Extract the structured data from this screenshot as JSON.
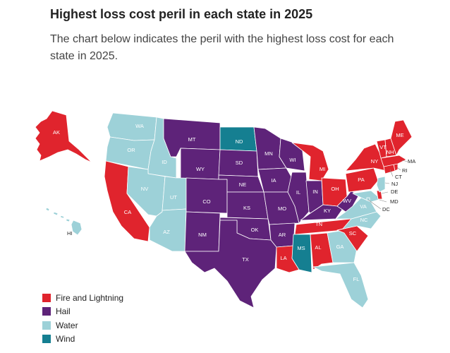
{
  "title": "Highest loss cost peril in each state in 2025",
  "subtitle": "The chart below indicates the peril with the highest loss cost for each state in 2025.",
  "legend": [
    {
      "key": "fire",
      "label": "Fire and Lightning",
      "color": "#e0242d"
    },
    {
      "key": "hail",
      "label": "Hail",
      "color": "#5e2379"
    },
    {
      "key": "water",
      "label": "Water",
      "color": "#9dd1d8"
    },
    {
      "key": "wind",
      "label": "Wind",
      "color": "#157f91"
    }
  ],
  "states": {
    "AK": "fire",
    "HI": "water",
    "WA": "water",
    "OR": "water",
    "CA": "fire",
    "ID": "water",
    "NV": "water",
    "UT": "water",
    "AZ": "water",
    "MT": "hail",
    "WY": "hail",
    "CO": "hail",
    "NM": "hail",
    "ND": "wind",
    "SD": "hail",
    "NE": "hail",
    "KS": "hail",
    "OK": "hail",
    "TX": "hail",
    "MN": "hail",
    "IA": "hail",
    "MO": "hail",
    "AR": "hail",
    "LA": "fire",
    "WI": "hail",
    "IL": "hail",
    "MI": "fire",
    "IN": "hail",
    "OH": "fire",
    "KY": "hail",
    "TN": "fire",
    "MS": "wind",
    "AL": "fire",
    "GA": "water",
    "FL": "water",
    "SC": "fire",
    "NC": "water",
    "VA": "water",
    "WV": "hail",
    "PA": "fire",
    "NY": "fire",
    "ME": "fire",
    "VT": "fire",
    "NH": "fire",
    "MA": "fire",
    "RI": "fire",
    "CT": "fire",
    "NJ": "water",
    "DE": "fire",
    "MD": "water",
    "DC": "water"
  }
}
